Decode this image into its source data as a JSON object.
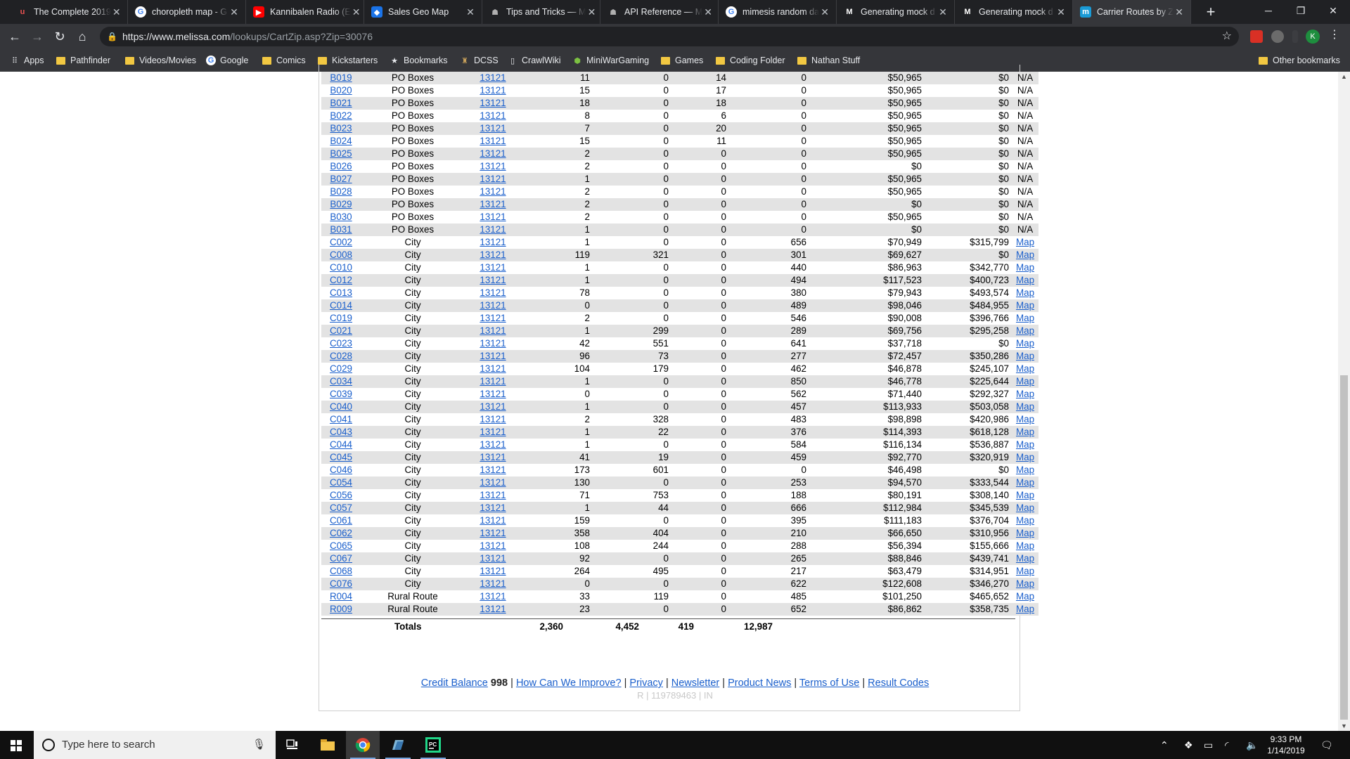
{
  "browser": {
    "tabs": [
      {
        "title": "The Complete 2019",
        "icon": "udemy-icon",
        "color": "#ec5252",
        "letter": "u"
      },
      {
        "title": "choropleth map - G",
        "icon": "google-icon",
        "color": "#ffffff",
        "letter": "G"
      },
      {
        "title": "Kannibalen Radio (E",
        "icon": "youtube-icon",
        "color": "#ff0000",
        "letter": "▶"
      },
      {
        "title": "Sales Geo Map",
        "icon": "sales-geo-map-icon",
        "color": "#1a73e8",
        "letter": "◆"
      },
      {
        "title": "Tips and Tricks — M",
        "icon": "mimesis-icon",
        "color": "#202124",
        "letter": "☗"
      },
      {
        "title": "API Reference — M",
        "icon": "mimesis-icon",
        "color": "#202124",
        "letter": "☗"
      },
      {
        "title": "mimesis random da",
        "icon": "google-icon",
        "color": "#ffffff",
        "letter": "G"
      },
      {
        "title": "Generating mock d",
        "icon": "medium-icon",
        "color": "#ffffff",
        "letter": "M"
      },
      {
        "title": "Generating mock d",
        "icon": "medium-icon",
        "color": "#ffffff",
        "letter": "M"
      },
      {
        "title": "Carrier Routes by Z",
        "icon": "melissa-icon",
        "color": "#1a9bd7",
        "letter": "m",
        "active": true
      }
    ],
    "url_host": "https://www.melissa.com",
    "url_path": "/lookups/CartZip.asp?Zip=30076",
    "profile_letter": "K",
    "bookmarks": [
      {
        "label": "Apps",
        "kind": "apps"
      },
      {
        "label": "Pathfinder",
        "kind": "folder"
      },
      {
        "label": "Videos/Movies",
        "kind": "folder"
      },
      {
        "label": "Google",
        "kind": "google"
      },
      {
        "label": "Comics",
        "kind": "folder"
      },
      {
        "label": "Kickstarters",
        "kind": "folder"
      },
      {
        "label": "Bookmarks",
        "kind": "star"
      },
      {
        "label": "DCSS",
        "kind": "dcss"
      },
      {
        "label": "CrawlWiki",
        "kind": "page"
      },
      {
        "label": "MiniWarGaming",
        "kind": "mwg"
      },
      {
        "label": "Games",
        "kind": "folder"
      },
      {
        "label": "Coding Folder",
        "kind": "folder"
      },
      {
        "label": "Nathan Stuff",
        "kind": "folder"
      }
    ],
    "other_bookmarks": "Other bookmarks"
  },
  "routes": [
    [
      "B019",
      "PO Boxes",
      "13121",
      "11",
      "0",
      "14",
      "0",
      "$50,965",
      "$0",
      "N/A"
    ],
    [
      "B020",
      "PO Boxes",
      "13121",
      "15",
      "0",
      "17",
      "0",
      "$50,965",
      "$0",
      "N/A"
    ],
    [
      "B021",
      "PO Boxes",
      "13121",
      "18",
      "0",
      "18",
      "0",
      "$50,965",
      "$0",
      "N/A"
    ],
    [
      "B022",
      "PO Boxes",
      "13121",
      "8",
      "0",
      "6",
      "0",
      "$50,965",
      "$0",
      "N/A"
    ],
    [
      "B023",
      "PO Boxes",
      "13121",
      "7",
      "0",
      "20",
      "0",
      "$50,965",
      "$0",
      "N/A"
    ],
    [
      "B024",
      "PO Boxes",
      "13121",
      "15",
      "0",
      "11",
      "0",
      "$50,965",
      "$0",
      "N/A"
    ],
    [
      "B025",
      "PO Boxes",
      "13121",
      "2",
      "0",
      "0",
      "0",
      "$50,965",
      "$0",
      "N/A"
    ],
    [
      "B026",
      "PO Boxes",
      "13121",
      "2",
      "0",
      "0",
      "0",
      "$0",
      "$0",
      "N/A"
    ],
    [
      "B027",
      "PO Boxes",
      "13121",
      "1",
      "0",
      "0",
      "0",
      "$50,965",
      "$0",
      "N/A"
    ],
    [
      "B028",
      "PO Boxes",
      "13121",
      "2",
      "0",
      "0",
      "0",
      "$50,965",
      "$0",
      "N/A"
    ],
    [
      "B029",
      "PO Boxes",
      "13121",
      "2",
      "0",
      "0",
      "0",
      "$0",
      "$0",
      "N/A"
    ],
    [
      "B030",
      "PO Boxes",
      "13121",
      "2",
      "0",
      "0",
      "0",
      "$50,965",
      "$0",
      "N/A"
    ],
    [
      "B031",
      "PO Boxes",
      "13121",
      "1",
      "0",
      "0",
      "0",
      "$0",
      "$0",
      "N/A"
    ],
    [
      "C002",
      "City",
      "13121",
      "1",
      "0",
      "0",
      "656",
      "$70,949",
      "$315,799",
      "Map"
    ],
    [
      "C008",
      "City",
      "13121",
      "119",
      "321",
      "0",
      "301",
      "$69,627",
      "$0",
      "Map"
    ],
    [
      "C010",
      "City",
      "13121",
      "1",
      "0",
      "0",
      "440",
      "$86,963",
      "$342,770",
      "Map"
    ],
    [
      "C012",
      "City",
      "13121",
      "1",
      "0",
      "0",
      "494",
      "$117,523",
      "$400,723",
      "Map"
    ],
    [
      "C013",
      "City",
      "13121",
      "78",
      "0",
      "0",
      "380",
      "$79,943",
      "$493,574",
      "Map"
    ],
    [
      "C014",
      "City",
      "13121",
      "0",
      "0",
      "0",
      "489",
      "$98,046",
      "$484,955",
      "Map"
    ],
    [
      "C019",
      "City",
      "13121",
      "2",
      "0",
      "0",
      "546",
      "$90,008",
      "$396,766",
      "Map"
    ],
    [
      "C021",
      "City",
      "13121",
      "1",
      "299",
      "0",
      "289",
      "$69,756",
      "$295,258",
      "Map"
    ],
    [
      "C023",
      "City",
      "13121",
      "42",
      "551",
      "0",
      "641",
      "$37,718",
      "$0",
      "Map"
    ],
    [
      "C028",
      "City",
      "13121",
      "96",
      "73",
      "0",
      "277",
      "$72,457",
      "$350,286",
      "Map"
    ],
    [
      "C029",
      "City",
      "13121",
      "104",
      "179",
      "0",
      "462",
      "$46,878",
      "$245,107",
      "Map"
    ],
    [
      "C034",
      "City",
      "13121",
      "1",
      "0",
      "0",
      "850",
      "$46,778",
      "$225,644",
      "Map"
    ],
    [
      "C039",
      "City",
      "13121",
      "0",
      "0",
      "0",
      "562",
      "$71,440",
      "$292,327",
      "Map"
    ],
    [
      "C040",
      "City",
      "13121",
      "1",
      "0",
      "0",
      "457",
      "$113,933",
      "$503,058",
      "Map"
    ],
    [
      "C041",
      "City",
      "13121",
      "2",
      "328",
      "0",
      "483",
      "$98,898",
      "$420,986",
      "Map"
    ],
    [
      "C043",
      "City",
      "13121",
      "1",
      "22",
      "0",
      "376",
      "$114,393",
      "$618,128",
      "Map"
    ],
    [
      "C044",
      "City",
      "13121",
      "1",
      "0",
      "0",
      "584",
      "$116,134",
      "$536,887",
      "Map"
    ],
    [
      "C045",
      "City",
      "13121",
      "41",
      "19",
      "0",
      "459",
      "$92,770",
      "$320,919",
      "Map"
    ],
    [
      "C046",
      "City",
      "13121",
      "173",
      "601",
      "0",
      "0",
      "$46,498",
      "$0",
      "Map"
    ],
    [
      "C054",
      "City",
      "13121",
      "130",
      "0",
      "0",
      "253",
      "$94,570",
      "$333,544",
      "Map"
    ],
    [
      "C056",
      "City",
      "13121",
      "71",
      "753",
      "0",
      "188",
      "$80,191",
      "$308,140",
      "Map"
    ],
    [
      "C057",
      "City",
      "13121",
      "1",
      "44",
      "0",
      "666",
      "$112,984",
      "$345,539",
      "Map"
    ],
    [
      "C061",
      "City",
      "13121",
      "159",
      "0",
      "0",
      "395",
      "$111,183",
      "$376,704",
      "Map"
    ],
    [
      "C062",
      "City",
      "13121",
      "358",
      "404",
      "0",
      "210",
      "$66,650",
      "$310,956",
      "Map"
    ],
    [
      "C065",
      "City",
      "13121",
      "108",
      "244",
      "0",
      "288",
      "$56,394",
      "$155,666",
      "Map"
    ],
    [
      "C067",
      "City",
      "13121",
      "92",
      "0",
      "0",
      "265",
      "$88,846",
      "$439,741",
      "Map"
    ],
    [
      "C068",
      "City",
      "13121",
      "264",
      "495",
      "0",
      "217",
      "$63,479",
      "$314,951",
      "Map"
    ],
    [
      "C076",
      "City",
      "13121",
      "0",
      "0",
      "0",
      "622",
      "$122,608",
      "$346,270",
      "Map"
    ],
    [
      "R004",
      "Rural Route",
      "13121",
      "33",
      "119",
      "0",
      "485",
      "$101,250",
      "$465,652",
      "Map"
    ],
    [
      "R009",
      "Rural Route",
      "13121",
      "23",
      "0",
      "0",
      "652",
      "$86,862",
      "$358,735",
      "Map"
    ]
  ],
  "totals": {
    "label": "Totals",
    "v1": "2,360",
    "v2": "4,452",
    "v3": "419",
    "v4": "12,987"
  },
  "footer": {
    "credit_label": "Credit Balance",
    "credit_value": "998",
    "links": [
      "How Can We Improve?",
      "Privacy",
      "Newsletter",
      "Product News",
      "Terms of Use",
      "Result Codes"
    ],
    "code": "R | 119789463 | IN"
  },
  "taskbar": {
    "search_placeholder": "Type here to search",
    "time": "9:33 PM",
    "date": "1/14/2019"
  },
  "colors": {
    "link": "#1a5fcc",
    "row_alt": "#e3e3e3",
    "chrome_dark": "#202124",
    "chrome_toolbar": "#35363a"
  }
}
